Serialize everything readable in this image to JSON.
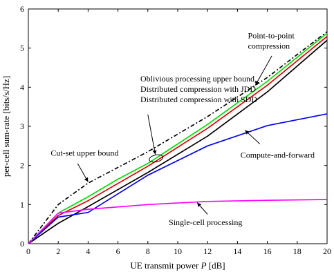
{
  "chart_data": {
    "type": "line",
    "xlabel_prefix": "UE transmit power ",
    "xlabel_var": "P",
    "xlabel_suffix": " [dB]",
    "ylabel": "per-cell sum-rate [bits/s/Hz]",
    "xlim": [
      0,
      20
    ],
    "ylim": [
      0,
      6
    ],
    "xticks": [
      0,
      2,
      4,
      6,
      8,
      10,
      12,
      14,
      16,
      18,
      20
    ],
    "yticks": [
      0,
      1,
      2,
      3,
      4,
      5,
      6
    ],
    "grid": false,
    "series": [
      {
        "color": "#000000",
        "dash": "dashdot",
        "x": [
          0,
          2,
          4,
          8,
          12,
          16,
          20
        ],
        "y": [
          0,
          1.0,
          1.55,
          2.35,
          3.25,
          4.25,
          5.42
        ]
      },
      {
        "color": "#00dd00",
        "x": [
          0,
          2,
          4,
          6,
          8,
          12,
          16,
          20
        ],
        "y": [
          0,
          0.78,
          1.2,
          1.65,
          2.05,
          3.05,
          4.15,
          5.38
        ]
      },
      {
        "color": "#dd0000",
        "x": [
          0,
          2,
          4,
          8,
          12,
          16,
          20
        ],
        "y": [
          0,
          0.72,
          1.1,
          1.98,
          2.95,
          4.05,
          5.3
        ]
      },
      {
        "color": "#000000",
        "x": [
          0,
          2,
          4,
          8,
          12,
          16,
          20
        ],
        "y": [
          0,
          0.52,
          0.95,
          1.82,
          2.75,
          3.88,
          5.2
        ]
      },
      {
        "color": "#0000ee",
        "x": [
          0,
          2,
          4,
          8,
          12,
          16,
          20
        ],
        "y": [
          0,
          0.68,
          0.8,
          1.75,
          2.5,
          3.02,
          3.32
        ]
      },
      {
        "color": "#ff00ff",
        "x": [
          0,
          2,
          4,
          8,
          12,
          16,
          20
        ],
        "y": [
          0,
          0.78,
          0.88,
          1.0,
          1.08,
          1.11,
          1.13
        ]
      }
    ],
    "annotations": [
      {
        "lines": [
          "Point-to-point",
          "compression"
        ],
        "pos": [
          14.7,
          5.25
        ],
        "arrow_tail": [
          16.3,
          4.8
        ],
        "arrow_head": [
          15.2,
          4.05
        ]
      },
      {
        "lines": [
          "Oblivious processing upper bound,",
          "Distributed compression with JDD",
          "Distributed compression with SDD"
        ],
        "pos": [
          7.5,
          4.15
        ],
        "arrow_tail": [
          8.0,
          3.3
        ],
        "arrow_head": [
          8.5,
          2.28
        ],
        "ellipse": [
          8.55,
          2.18
        ]
      },
      {
        "lines": [
          "Cut-set upper bound"
        ],
        "pos": [
          1.5,
          2.25
        ],
        "arrow_tail": [
          3.3,
          2.05
        ],
        "arrow_head": [
          4.0,
          1.58
        ]
      },
      {
        "lines": [
          "Compute-and-forward"
        ],
        "pos": [
          14.2,
          2.2
        ],
        "arrow_tail": [
          15.5,
          2.55
        ],
        "arrow_head": [
          14.5,
          2.9
        ]
      },
      {
        "lines": [
          "Single-cell processing"
        ],
        "pos": [
          9.4,
          0.48
        ],
        "arrow_tail": [
          12.0,
          0.75
        ],
        "arrow_head": [
          11.3,
          1.05
        ]
      }
    ]
  }
}
